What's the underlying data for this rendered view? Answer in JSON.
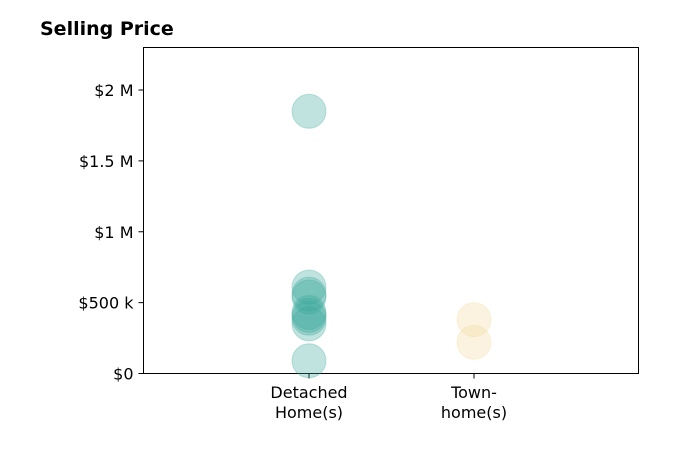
{
  "chart_data": {
    "type": "scatter",
    "title": "Selling Price",
    "xlabel": "",
    "ylabel": "",
    "ylim": [
      0,
      2300000
    ],
    "yticks": [
      {
        "value": 0,
        "label": "$0"
      },
      {
        "value": 500000,
        "label": "$500 k"
      },
      {
        "value": 1000000,
        "label": "$1 M"
      },
      {
        "value": 1500000,
        "label": "$1.5 M"
      },
      {
        "value": 2000000,
        "label": "$2 M"
      }
    ],
    "categories": [
      {
        "lines": [
          "Detached",
          "Home(s)"
        ]
      },
      {
        "lines": [
          "Town-",
          "home(s)"
        ]
      }
    ],
    "grid": false,
    "series": [
      {
        "category_index": 0,
        "color": "#3aa89b",
        "values": [
          1850000,
          610000,
          560000,
          540000,
          430000,
          410000,
          390000,
          350000,
          90000
        ]
      },
      {
        "category_index": 1,
        "color": "#f3d99b",
        "values": [
          380000,
          220000
        ]
      }
    ]
  }
}
